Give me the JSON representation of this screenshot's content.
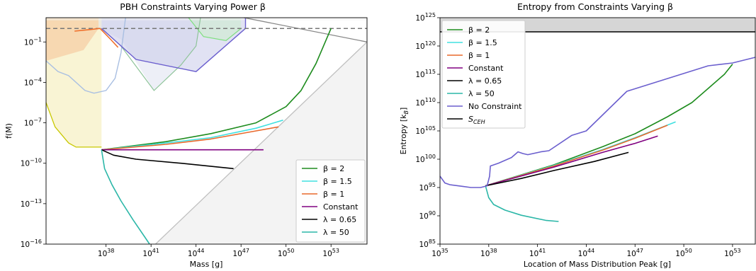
{
  "chart_data": [
    {
      "type": "line",
      "title": "PBH Constraints Varying Power β",
      "xlabel": "Mass [g]",
      "ylabel": "f(M)",
      "xscale": "log",
      "yscale": "log",
      "xlim_log10": [
        34.0,
        55.4
      ],
      "ylim_log10": [
        -16,
        0.8
      ],
      "xticks": [
        {
          "exp": 38,
          "label": "10",
          "sup": "38"
        },
        {
          "exp": 41,
          "label": "10",
          "sup": "41"
        },
        {
          "exp": 44,
          "label": "10",
          "sup": "44"
        },
        {
          "exp": 47,
          "label": "10",
          "sup": "47"
        },
        {
          "exp": 50,
          "label": "10",
          "sup": "50"
        },
        {
          "exp": 53,
          "label": "10",
          "sup": "53"
        }
      ],
      "yticks": [
        {
          "exp": -1,
          "label": "10",
          "sup": "−1"
        },
        {
          "exp": -4,
          "label": "10",
          "sup": "−4"
        },
        {
          "exp": -7,
          "label": "10",
          "sup": "−7"
        },
        {
          "exp": -10,
          "label": "10",
          "sup": "−10"
        },
        {
          "exp": -13,
          "label": "10",
          "sup": "−13"
        },
        {
          "exp": -16,
          "label": "10",
          "sup": "−16"
        }
      ],
      "hline_log10": 0,
      "regions": [
        {
          "color": "#f2e7a0",
          "opacity": 0.45,
          "points": [
            [
              34,
              -5.5
            ],
            [
              34.6,
              -7.3
            ],
            [
              35.5,
              -8.5
            ],
            [
              36,
              -8.8
            ],
            [
              37.7,
              -8.8
            ],
            [
              37.7,
              0.8
            ],
            [
              34,
              0.8
            ]
          ]
        },
        {
          "color": "#f4b07e",
          "opacity": 0.4,
          "points": [
            [
              34,
              -2.4
            ],
            [
              36.5,
              -1.6
            ],
            [
              37.5,
              0.0
            ],
            [
              37.5,
              0.8
            ],
            [
              34,
              0.8
            ]
          ]
        },
        {
          "color": "#d7dbee",
          "opacity": 0.45,
          "points": [
            [
              37.5,
              0.0
            ],
            [
              39,
              -0.8
            ],
            [
              40,
              -2.5
            ],
            [
              41.2,
              -4.6
            ],
            [
              43,
              -2.7
            ],
            [
              44,
              -1.3
            ],
            [
              44.3,
              0.8
            ],
            [
              37.5,
              0.8
            ]
          ]
        },
        {
          "color": "#c9cbe9",
          "opacity": 0.55,
          "points": [
            [
              37.7,
              0.0
            ],
            [
              40,
              -2.3
            ],
            [
              44,
              -3.2
            ],
            [
              47.3,
              0.0
            ],
            [
              47.3,
              0.8
            ],
            [
              37.7,
              0.8
            ]
          ]
        },
        {
          "color": "#c7f0c3",
          "opacity": 0.45,
          "points": [
            [
              43.5,
              0.8
            ],
            [
              44.5,
              -0.6
            ],
            [
              46,
              -0.9
            ],
            [
              47,
              0.0
            ],
            [
              47,
              0.8
            ]
          ]
        },
        {
          "color": "#eaeaea",
          "opacity": 0.55,
          "points": [
            [
              41.3,
              -16
            ],
            [
              55.4,
              -1.0
            ],
            [
              55.4,
              -16
            ]
          ]
        },
        {
          "color": "#f1f1f1",
          "opacity": 0.5,
          "points": [
            [
              34,
              0.8
            ],
            [
              55.4,
              0.8
            ],
            [
              55.4,
              0.6
            ],
            [
              34,
              0.6
            ]
          ]
        }
      ],
      "boundaries": [
        {
          "color": "#c8c800",
          "width": 1.3,
          "points": [
            [
              34,
              -5.5
            ],
            [
              34.6,
              -7.3
            ],
            [
              35.5,
              -8.5
            ],
            [
              36,
              -8.8
            ],
            [
              37.7,
              -8.8
            ]
          ]
        },
        {
          "color": "#a9bfe2",
          "width": 1.4,
          "points": [
            [
              34,
              -2.4
            ],
            [
              34.8,
              -3.2
            ],
            [
              35.5,
              -3.5
            ],
            [
              36.6,
              -4.6
            ],
            [
              37.2,
              -4.8
            ],
            [
              38,
              -4.6
            ],
            [
              38.6,
              -3.7
            ],
            [
              39,
              -1.8
            ],
            [
              39.3,
              0.8
            ]
          ]
        },
        {
          "color": "#8fc49a",
          "width": 1.2,
          "points": [
            [
              37.7,
              0.0
            ],
            [
              39,
              -1.3
            ],
            [
              40,
              -2.8
            ],
            [
              41.2,
              -4.6
            ],
            [
              43,
              -2.7
            ],
            [
              44,
              -1.3
            ],
            [
              44.3,
              0.8
            ]
          ]
        },
        {
          "color": "#7ee07e",
          "width": 1.2,
          "points": [
            [
              43.5,
              0.8
            ],
            [
              44.5,
              -0.6
            ],
            [
              46,
              -0.9
            ],
            [
              47,
              0.0
            ]
          ]
        },
        {
          "color": "#6b5fce",
          "width": 1.4,
          "points": [
            [
              37.7,
              0.0
            ],
            [
              40,
              -2.3
            ],
            [
              44,
              -3.2
            ],
            [
              47.3,
              0.0
            ],
            [
              47.3,
              0.8
            ]
          ]
        },
        {
          "color": "#888888",
          "width": 1.3,
          "points": [
            [
              47.2,
              0.8
            ],
            [
              55.4,
              -1.0
            ]
          ]
        },
        {
          "color": "#c0c0c0",
          "width": 1.3,
          "points": [
            [
              41.3,
              -16
            ],
            [
              55.4,
              -1.0
            ]
          ]
        }
      ],
      "series": [
        {
          "name": "β = 2",
          "legend": true,
          "color": "#1e8c1e",
          "points": [
            [
              37.7,
              -9.0
            ],
            [
              42,
              -8.4
            ],
            [
              45,
              -7.8
            ],
            [
              48,
              -7.0
            ],
            [
              50.0,
              -5.8
            ],
            [
              51.0,
              -4.6
            ],
            [
              52.0,
              -2.6
            ],
            [
              53.0,
              0.0
            ]
          ]
        },
        {
          "name": "β = 1.5",
          "legend": true,
          "color": "#40e0e0",
          "points": [
            [
              37.7,
              -9.0
            ],
            [
              42,
              -8.5
            ],
            [
              45,
              -8.1
            ],
            [
              48,
              -7.4
            ],
            [
              49.8,
              -6.8
            ]
          ]
        },
        {
          "name": "β = 1",
          "legend": true,
          "color": "#e8692c",
          "points": [
            [
              37.7,
              -9.0
            ],
            [
              42,
              -8.6
            ],
            [
              45,
              -8.2
            ],
            [
              48,
              -7.6
            ],
            [
              49.5,
              -7.3
            ]
          ]
        },
        {
          "name": "Constant",
          "legend": true,
          "color": "#800080",
          "points": [
            [
              37.7,
              -9.0
            ],
            [
              48.5,
              -9.0
            ]
          ]
        },
        {
          "name": "λ = 0.65",
          "legend": true,
          "color": "#000000",
          "points": [
            [
              37.7,
              -9.0
            ],
            [
              38.5,
              -9.4
            ],
            [
              40,
              -9.7
            ],
            [
              43,
              -10.0
            ],
            [
              46.5,
              -10.4
            ]
          ]
        },
        {
          "name": "λ = 50",
          "legend": true,
          "color": "#2cb7a8",
          "points": [
            [
              37.7,
              -9.0
            ],
            [
              37.9,
              -10.4
            ],
            [
              38.4,
              -11.6
            ],
            [
              39,
              -12.8
            ],
            [
              39.8,
              -14.2
            ],
            [
              40.6,
              -15.5
            ],
            [
              40.9,
              -16.0
            ]
          ]
        },
        {
          "name": "",
          "legend": false,
          "color": "#ef6f2a",
          "points": [
            [
              35.9,
              -0.2
            ],
            [
              36.8,
              -0.1
            ],
            [
              37.6,
              0.0
            ],
            [
              38.3,
              -0.8
            ],
            [
              38.8,
              -1.4
            ]
          ]
        }
      ]
    },
    {
      "type": "line",
      "title": "Entropy from Constraints Varying β",
      "xlabel": "Location of Mass Distribution Peak [g]",
      "ylabel": "Entropy [k",
      "ylabel_sub": "B",
      "ylabel_end": "]",
      "xscale": "log",
      "yscale": "log",
      "xlim_log10": [
        35,
        54.4
      ],
      "ylim_log10": [
        85,
        125
      ],
      "xticks": [
        {
          "exp": 35,
          "label": "10",
          "sup": "35"
        },
        {
          "exp": 38,
          "label": "10",
          "sup": "38"
        },
        {
          "exp": 41,
          "label": "10",
          "sup": "41"
        },
        {
          "exp": 44,
          "label": "10",
          "sup": "44"
        },
        {
          "exp": 47,
          "label": "10",
          "sup": "47"
        },
        {
          "exp": 50,
          "label": "10",
          "sup": "50"
        },
        {
          "exp": 53,
          "label": "10",
          "sup": "53"
        }
      ],
      "yticks": [
        {
          "exp": 85,
          "label": "10",
          "sup": "85"
        },
        {
          "exp": 90,
          "label": "10",
          "sup": "90"
        },
        {
          "exp": 95,
          "label": "10",
          "sup": "95"
        },
        {
          "exp": 100,
          "label": "10",
          "sup": "100"
        },
        {
          "exp": 105,
          "label": "10",
          "sup": "105"
        },
        {
          "exp": 110,
          "label": "10",
          "sup": "110"
        },
        {
          "exp": 115,
          "label": "10",
          "sup": "115"
        },
        {
          "exp": 120,
          "label": "10",
          "sup": "120"
        },
        {
          "exp": 125,
          "label": "10",
          "sup": "125"
        }
      ],
      "band_log10": [
        122.5,
        125
      ],
      "band_color": "#d6d6d6",
      "s_ceh_log10": 122.5,
      "series": [
        {
          "name": "β = 2",
          "color": "#1e8c1e",
          "points": [
            [
              37.8,
              95.3
            ],
            [
              42,
              99.0
            ],
            [
              45,
              102.2
            ],
            [
              47,
              104.5
            ],
            [
              49,
              107.5
            ],
            [
              50.5,
              110.0
            ],
            [
              51.5,
              112.5
            ],
            [
              52.5,
              115.0
            ],
            [
              53.0,
              116.8
            ]
          ]
        },
        {
          "name": "β = 1.5",
          "color": "#40e0e0",
          "points": [
            [
              37.8,
              95.3
            ],
            [
              42,
              98.9
            ],
            [
              45,
              101.7
            ],
            [
              47,
              103.8
            ],
            [
              49.5,
              106.6
            ]
          ]
        },
        {
          "name": "β = 1",
          "color": "#e8692c",
          "points": [
            [
              37.8,
              95.3
            ],
            [
              42,
              98.8
            ],
            [
              45,
              101.6
            ],
            [
              47,
              103.7
            ],
            [
              49.0,
              106.0
            ]
          ]
        },
        {
          "name": "Constant",
          "color": "#800080",
          "points": [
            [
              37.8,
              95.3
            ],
            [
              42,
              98.6
            ],
            [
              45,
              101.2
            ],
            [
              47,
              102.8
            ],
            [
              48.4,
              104.1
            ]
          ]
        },
        {
          "name": "λ = 0.65",
          "color": "#000000",
          "points": [
            [
              37.8,
              95.3
            ],
            [
              40,
              96.6
            ],
            [
              42,
              98.0
            ],
            [
              44.5,
              99.6
            ],
            [
              46.6,
              101.2
            ]
          ]
        },
        {
          "name": "λ = 50",
          "color": "#2cb7a8",
          "points": [
            [
              37.8,
              95.3
            ],
            [
              38.0,
              93.2
            ],
            [
              38.3,
              92.0
            ],
            [
              39,
              91.0
            ],
            [
              40.0,
              90.1
            ],
            [
              41.5,
              89.2
            ],
            [
              42.3,
              89.0
            ]
          ]
        },
        {
          "name": "No Constraint",
          "color": "#6b5fce",
          "points": [
            [
              35.0,
              97.0
            ],
            [
              35.3,
              95.8
            ],
            [
              35.6,
              95.5
            ],
            [
              36.4,
              95.2
            ],
            [
              36.9,
              95.0
            ],
            [
              37.5,
              95.0
            ],
            [
              37.9,
              95.3
            ],
            [
              38.05,
              97.0
            ],
            [
              38.1,
              98.8
            ],
            [
              38.6,
              99.3
            ],
            [
              39.4,
              100.3
            ],
            [
              39.8,
              101.3
            ],
            [
              40.1,
              101.0
            ],
            [
              40.4,
              100.8
            ],
            [
              41.2,
              101.3
            ],
            [
              41.7,
              101.5
            ],
            [
              43.1,
              104.2
            ],
            [
              44.0,
              105.0
            ],
            [
              46.5,
              112.0
            ],
            [
              51.5,
              116.5
            ],
            [
              53.0,
              117.0
            ],
            [
              54.4,
              118.0
            ]
          ]
        },
        {
          "name": "S",
          "name_sub": "CEH",
          "color": "#000000"
        }
      ]
    }
  ]
}
